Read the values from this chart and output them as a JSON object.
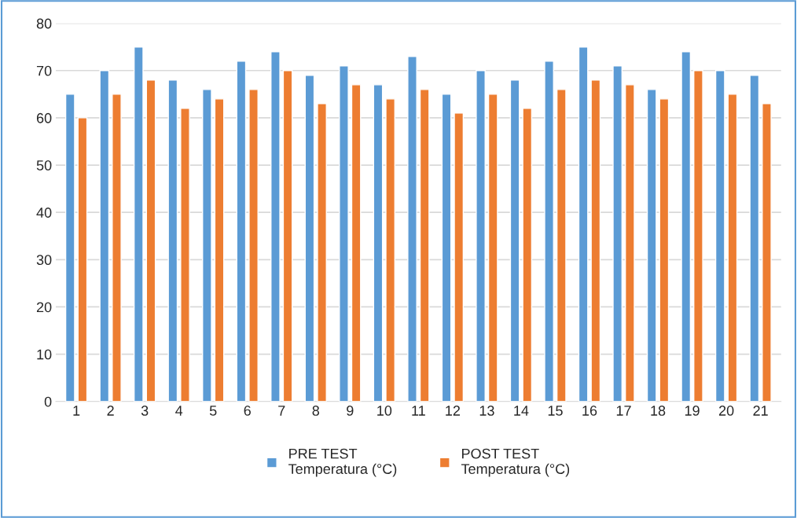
{
  "chart_data": {
    "type": "bar",
    "categories": [
      "1",
      "2",
      "3",
      "4",
      "5",
      "6",
      "7",
      "8",
      "9",
      "10",
      "11",
      "12",
      "13",
      "14",
      "15",
      "16",
      "17",
      "18",
      "19",
      "20",
      "21"
    ],
    "series": [
      {
        "name": "PRE TEST\nTemperatura (°C)",
        "color": "#5b9bd5",
        "values": [
          65,
          70,
          75,
          68,
          66,
          72,
          74,
          69,
          71,
          67,
          73,
          65,
          70,
          68,
          72,
          75,
          71,
          66,
          74,
          70,
          69
        ]
      },
      {
        "name": "POST TEST\nTemperatura (°C)",
        "color": "#ed7d31",
        "values": [
          60,
          65,
          68,
          62,
          64,
          66,
          70,
          63,
          67,
          64,
          66,
          61,
          65,
          62,
          66,
          68,
          67,
          64,
          70,
          65,
          63
        ]
      }
    ],
    "ylim": [
      0,
      80
    ],
    "yticks": [
      0,
      10,
      20,
      30,
      40,
      50,
      60,
      70,
      80
    ],
    "grid": "y",
    "legend": "bottom"
  }
}
